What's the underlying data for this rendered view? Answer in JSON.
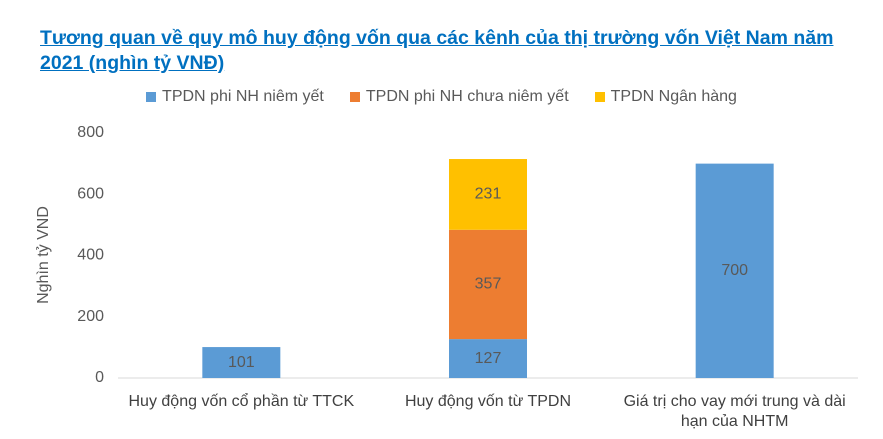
{
  "chart_data": {
    "type": "stacked-bar",
    "title": "Tương quan về quy mô huy động vốn qua các kênh của thị trường vốn Việt Nam năm 2021 (nghìn tỷ VNĐ)",
    "y_label": "Nghìn tỷ VND",
    "categories": [
      "Huy động vốn cổ phần từ TTCK",
      "Huy động vốn từ TPDN",
      "Giá trị cho vay mới trung và dài hạn của NHTM"
    ],
    "series": [
      {
        "name": "TPDN phi NH niêm yết",
        "color": "#5b9bd5",
        "values": [
          101,
          127,
          700
        ]
      },
      {
        "name": "TPDN phi NH chưa niêm yết",
        "color": "#ed7d31",
        "values": [
          null,
          357,
          null
        ]
      },
      {
        "name": "TPDN Ngân hàng",
        "color": "#ffc000",
        "values": [
          null,
          231,
          null
        ]
      }
    ],
    "ylim": [
      0,
      800
    ],
    "yticks": [
      0,
      200,
      400,
      600,
      800
    ],
    "legend": "top"
  }
}
